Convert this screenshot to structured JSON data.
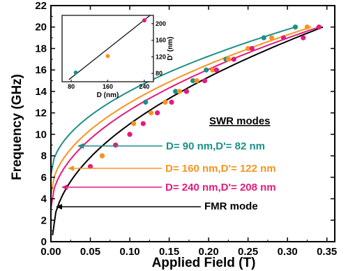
{
  "colors": {
    "teal": "#1a9088",
    "orange": "#f7941d",
    "magenta": "#e6197d",
    "black": "#000000"
  },
  "chart_data": {
    "type": "scatter",
    "xlabel": "Applied Field (T)",
    "ylabel": "Frequency (GHz)",
    "xlim": [
      0.0,
      0.36
    ],
    "ylim": [
      0,
      22
    ],
    "x_ticks": [
      "0.00",
      "0.05",
      "0.10",
      "0.15",
      "0.20",
      "0.25",
      "0.30",
      "0.35"
    ],
    "y_ticks": [
      "0",
      "2",
      "4",
      "6",
      "8",
      "10",
      "12",
      "14",
      "16",
      "18",
      "20",
      "22"
    ],
    "series": [
      {
        "name": "D= 90 nm,D'= 82 nm",
        "color": "#1a9088",
        "points": [
          [
            0.065,
            8.0
          ],
          [
            0.12,
            13.0
          ],
          [
            0.158,
            14.0
          ],
          [
            0.18,
            15.0
          ],
          [
            0.197,
            16.0
          ],
          [
            0.222,
            17.0
          ],
          [
            0.255,
            18.0
          ],
          [
            0.27,
            19.0
          ],
          [
            0.31,
            20.0
          ]
        ],
        "fit_f0": 6.2,
        "fit_end": [
          0.31,
          20.0
        ]
      },
      {
        "name": "D= 160 nm,D'= 122 nm",
        "color": "#f7941d",
        "points": [
          [
            0.065,
            8.0
          ],
          [
            0.082,
            9.0
          ],
          [
            0.1,
            10.0
          ],
          [
            0.105,
            11.0
          ],
          [
            0.127,
            12.0
          ],
          [
            0.145,
            13.0
          ],
          [
            0.163,
            14.0
          ],
          [
            0.185,
            15.0
          ],
          [
            0.205,
            16.0
          ],
          [
            0.225,
            17.0
          ],
          [
            0.25,
            18.0
          ],
          [
            0.28,
            19.0
          ],
          [
            0.325,
            20.0
          ]
        ],
        "fit_f0": 4.3,
        "fit_end": [
          0.33,
          20.0
        ]
      },
      {
        "name": "D= 240 nm,D'= 208 nm",
        "color": "#e6197d",
        "points": [
          [
            0.05,
            7.0
          ],
          [
            0.082,
            9.0
          ],
          [
            0.1,
            10.0
          ],
          [
            0.117,
            11.0
          ],
          [
            0.135,
            12.0
          ],
          [
            0.153,
            13.0
          ],
          [
            0.172,
            14.0
          ],
          [
            0.195,
            15.0
          ],
          [
            0.21,
            16.0
          ],
          [
            0.232,
            17.0
          ],
          [
            0.255,
            18.0
          ],
          [
            0.295,
            19.0
          ],
          [
            0.32,
            19.0
          ],
          [
            0.34,
            20.0
          ]
        ],
        "fit_f0": 3.1,
        "fit_end": [
          0.34,
          20.0
        ]
      },
      {
        "name": "FMR mode",
        "color": "#000000",
        "points": [],
        "fit_f0": 0.6,
        "fit_end": [
          0.345,
          20.0
        ]
      }
    ],
    "annotations": {
      "heading": "SWR modes",
      "label_teal": "D= 90 nm,D'= 82 nm",
      "label_orange": "D= 160 nm,D'= 122 nm",
      "label_magenta": "D= 240 nm,D'= 208 nm",
      "label_fmr": "FMR mode"
    },
    "inset": {
      "xlabel": "D (nm)",
      "ylabel": "D' (nm)",
      "xlim": [
        60,
        260
      ],
      "ylim": [
        60,
        220
      ],
      "x_ticks": [
        "80",
        "160",
        "240"
      ],
      "y_ticks": [
        "80",
        "120",
        "160",
        "200"
      ],
      "points": [
        {
          "x": 90,
          "y": 82,
          "color": "#1a9088"
        },
        {
          "x": 160,
          "y": 122,
          "color": "#f7941d"
        },
        {
          "x": 240,
          "y": 208,
          "color": "#e6197d"
        }
      ],
      "line": [
        [
          75,
          65
        ],
        [
          255,
          222
        ]
      ]
    }
  }
}
